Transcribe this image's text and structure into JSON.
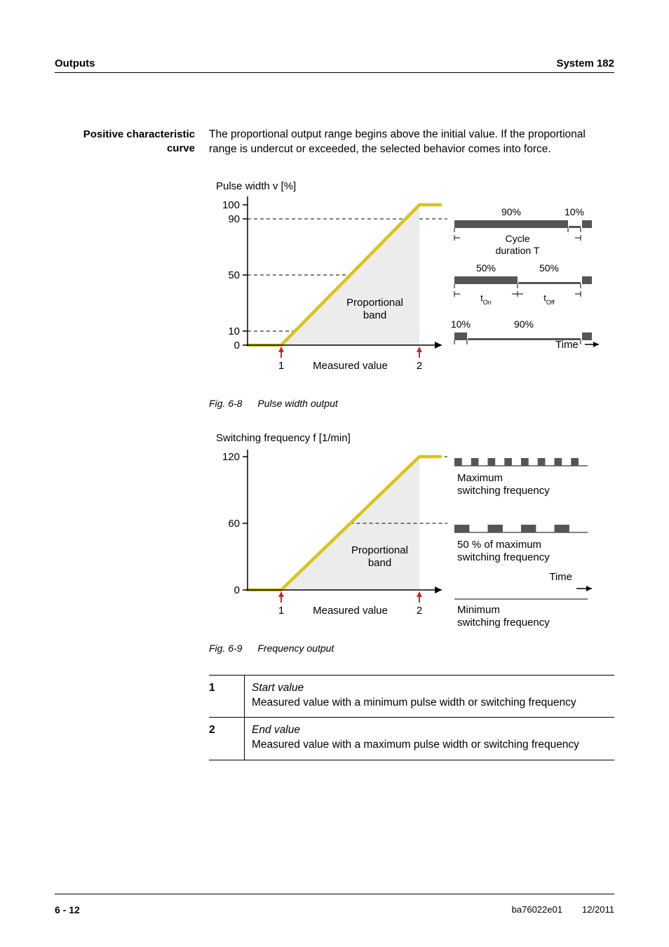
{
  "header": {
    "left": "Outputs",
    "right": "System 182"
  },
  "sidebar_heading": "Positive characteristic curve",
  "intro_para": "The proportional output range begins above the initial value. If the proportional range is undercut or exceeded, the selected behavior comes into force.",
  "fig1": {
    "y_title": "Pulse width v [%]",
    "y_ticks": [
      0,
      10,
      50,
      90,
      100
    ],
    "x_label": "Measured value",
    "x_marks": [
      "1",
      "2"
    ],
    "band_label_l1": "Proportional",
    "band_label_l2": "band",
    "time_label": "Time",
    "cycle_l1": "Cycle",
    "cycle_l2": "duration T",
    "rows": [
      {
        "on_pct": 90,
        "off_pct": 10,
        "on_label": "90%",
        "off_label": "10%"
      },
      {
        "on_pct": 50,
        "off_pct": 50,
        "on_label": "50%",
        "off_label": "50%"
      },
      {
        "on_pct": 10,
        "off_pct": 90,
        "on_label": "10%",
        "off_label": "90%"
      }
    ],
    "t_on": "t",
    "t_on_sub": "On",
    "t_off": "t",
    "t_off_sub": "Off",
    "caption_label": "Fig. 6-8",
    "caption_text": "Pulse width output",
    "colors": {
      "curve": "#d7c419",
      "fill": "#ececec",
      "bar": "#555555",
      "marker": "#c6262b",
      "axis": "#000000",
      "dash": "#000000"
    }
  },
  "fig2": {
    "y_title": "Switching frequency f [1/min]",
    "y_ticks": [
      0,
      60,
      120
    ],
    "x_label": "Measured value",
    "x_marks": [
      "1",
      "2"
    ],
    "band_label_l1": "Proportional",
    "band_label_l2": "band",
    "time_label": "Time",
    "rows": [
      {
        "n_on": 8,
        "label_l1": "Maximum",
        "label_l2": "switching frequency"
      },
      {
        "n_on": 4,
        "label_l1": "50 % of maximum",
        "label_l2": "switching frequency"
      },
      {
        "n_on": 0,
        "label_l1": "Minimum",
        "label_l2": "switching frequency",
        "is_min": true
      }
    ],
    "caption_label": "Fig. 6-9",
    "caption_text": "Frequency output",
    "colors": {
      "curve": "#d7c419",
      "fill": "#ececec",
      "bar": "#555555",
      "marker": "#c6262b",
      "axis": "#000000"
    }
  },
  "legend": [
    {
      "num": "1",
      "title": "Start value",
      "desc": "Measured value with a minimum pulse width or switching frequency"
    },
    {
      "num": "2",
      "title": "End value",
      "desc": "Measured value with a maximum pulse width or switching frequency"
    }
  ],
  "footer": {
    "page": "6 - 12",
    "rev": "ba76022e01",
    "date": "12/2011"
  }
}
